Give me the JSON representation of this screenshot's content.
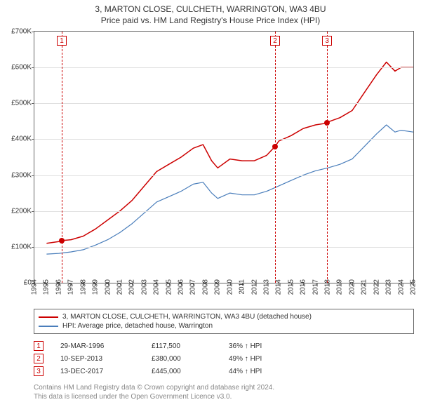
{
  "title": {
    "main": "3, MARTON CLOSE, CULCHETH, WARRINGTON, WA3 4BU",
    "sub": "Price paid vs. HM Land Registry's House Price Index (HPI)"
  },
  "chart": {
    "type": "line",
    "background_color": "#ffffff",
    "grid_color": "#e0e0e0",
    "border_color": "#666666",
    "x_axis": {
      "min": 1994,
      "max": 2025,
      "ticks": [
        1994,
        1995,
        1996,
        1997,
        1998,
        1999,
        2000,
        2001,
        2002,
        2003,
        2004,
        2005,
        2006,
        2007,
        2008,
        2009,
        2010,
        2011,
        2012,
        2013,
        2014,
        2015,
        2016,
        2017,
        2018,
        2019,
        2020,
        2021,
        2022,
        2023,
        2024,
        2025
      ],
      "tick_fontsize": 10
    },
    "y_axis": {
      "min": 0,
      "max": 700,
      "ticks": [
        0,
        100,
        200,
        300,
        400,
        500,
        600,
        700
      ],
      "tick_labels": [
        "£0",
        "£100K",
        "£200K",
        "£300K",
        "£400K",
        "£500K",
        "£600K",
        "£700K"
      ],
      "tick_fontsize": 10
    },
    "series": [
      {
        "name": "property",
        "label": "3, MARTON CLOSE, CULCHETH, WARRINGTON, WA3 4BU (detached house)",
        "color": "#cc0000",
        "line_width": 1.5,
        "points": [
          [
            1995.0,
            110
          ],
          [
            1996.0,
            115
          ],
          [
            1996.24,
            117.5
          ],
          [
            1997.0,
            120
          ],
          [
            1998.0,
            130
          ],
          [
            1999.0,
            150
          ],
          [
            2000.0,
            175
          ],
          [
            2001.0,
            200
          ],
          [
            2002.0,
            230
          ],
          [
            2003.0,
            270
          ],
          [
            2004.0,
            310
          ],
          [
            2005.0,
            330
          ],
          [
            2006.0,
            350
          ],
          [
            2007.0,
            375
          ],
          [
            2007.8,
            385
          ],
          [
            2008.5,
            340
          ],
          [
            2009.0,
            320
          ],
          [
            2010.0,
            345
          ],
          [
            2011.0,
            340
          ],
          [
            2012.0,
            340
          ],
          [
            2013.0,
            355
          ],
          [
            2013.69,
            380
          ],
          [
            2014.0,
            395
          ],
          [
            2015.0,
            410
          ],
          [
            2016.0,
            430
          ],
          [
            2017.0,
            440
          ],
          [
            2017.95,
            445
          ],
          [
            2018.0,
            448
          ],
          [
            2019.0,
            460
          ],
          [
            2020.0,
            480
          ],
          [
            2021.0,
            530
          ],
          [
            2022.0,
            580
          ],
          [
            2022.8,
            615
          ],
          [
            2023.5,
            590
          ],
          [
            2024.0,
            600
          ],
          [
            2025.0,
            600
          ]
        ]
      },
      {
        "name": "hpi",
        "label": "HPI: Average price, detached house, Warrington",
        "color": "#4a7ebb",
        "line_width": 1.2,
        "points": [
          [
            1995.0,
            80
          ],
          [
            1996.0,
            82
          ],
          [
            1997.0,
            86
          ],
          [
            1998.0,
            92
          ],
          [
            1999.0,
            105
          ],
          [
            2000.0,
            120
          ],
          [
            2001.0,
            140
          ],
          [
            2002.0,
            165
          ],
          [
            2003.0,
            195
          ],
          [
            2004.0,
            225
          ],
          [
            2005.0,
            240
          ],
          [
            2006.0,
            255
          ],
          [
            2007.0,
            275
          ],
          [
            2007.8,
            280
          ],
          [
            2008.5,
            250
          ],
          [
            2009.0,
            235
          ],
          [
            2010.0,
            250
          ],
          [
            2011.0,
            245
          ],
          [
            2012.0,
            245
          ],
          [
            2013.0,
            255
          ],
          [
            2014.0,
            270
          ],
          [
            2015.0,
            285
          ],
          [
            2016.0,
            300
          ],
          [
            2017.0,
            312
          ],
          [
            2018.0,
            320
          ],
          [
            2019.0,
            330
          ],
          [
            2020.0,
            345
          ],
          [
            2021.0,
            380
          ],
          [
            2022.0,
            415
          ],
          [
            2022.8,
            440
          ],
          [
            2023.5,
            420
          ],
          [
            2024.0,
            425
          ],
          [
            2025.0,
            420
          ]
        ]
      }
    ],
    "markers": [
      {
        "n": "1",
        "x": 1996.24,
        "y": 117.5,
        "dot_color": "#cc0000"
      },
      {
        "n": "2",
        "x": 2013.69,
        "y": 380,
        "dot_color": "#cc0000"
      },
      {
        "n": "3",
        "x": 2017.95,
        "y": 445,
        "dot_color": "#cc0000"
      }
    ]
  },
  "legend": {
    "items": [
      {
        "color": "#cc0000",
        "label": "3, MARTON CLOSE, CULCHETH, WARRINGTON, WA3 4BU (detached house)"
      },
      {
        "color": "#4a7ebb",
        "label": "HPI: Average price, detached house, Warrington"
      }
    ]
  },
  "sales": [
    {
      "n": "1",
      "date": "29-MAR-1996",
      "price": "£117,500",
      "pct": "36% ↑ HPI"
    },
    {
      "n": "2",
      "date": "10-SEP-2013",
      "price": "£380,000",
      "pct": "49% ↑ HPI"
    },
    {
      "n": "3",
      "date": "13-DEC-2017",
      "price": "£445,000",
      "pct": "44% ↑ HPI"
    }
  ],
  "footer": {
    "line1": "Contains HM Land Registry data © Crown copyright and database right 2024.",
    "line2": "This data is licensed under the Open Government Licence v3.0."
  }
}
